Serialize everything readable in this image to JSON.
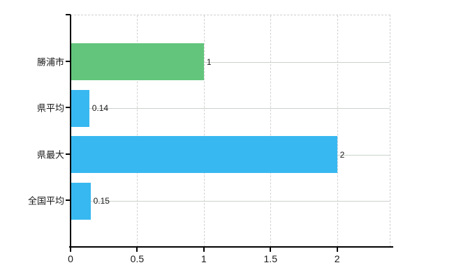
{
  "chart_data": {
    "type": "bar",
    "orientation": "horizontal",
    "title": "",
    "xlabel": "",
    "ylabel": "",
    "categories": [
      "勝浦市",
      "県平均",
      "県最大",
      "全国平均"
    ],
    "values": [
      1,
      0.14,
      2,
      0.15
    ],
    "value_labels": [
      "1",
      "0.14",
      "2",
      "0.15"
    ],
    "bar_colors": [
      "#63c57c",
      "#38b8f0",
      "#38b8f0",
      "#38b8f0"
    ],
    "xlim": [
      0,
      2.4
    ],
    "x_tick_values": [
      0,
      0.5,
      1,
      1.5,
      2
    ],
    "x_tick_labels": [
      "0",
      "0.5",
      "1",
      "1.5",
      "2"
    ],
    "grid": {
      "vertical": "dashed",
      "horizontal": "solid"
    },
    "legend": false
  },
  "colors": {
    "background": "#ffffff",
    "axis": "#000000",
    "gridline": "#cccccc",
    "text": "#1a1a1a",
    "bar_green": "#63c57c",
    "bar_blue": "#38b8f0"
  }
}
